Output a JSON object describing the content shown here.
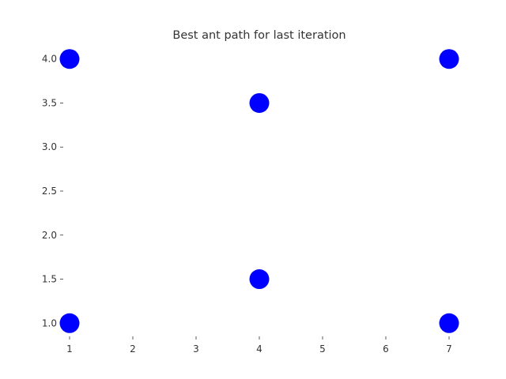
{
  "chart_data": {
    "type": "scatter",
    "title": "Best ant path for last iteration",
    "xlabel": "",
    "ylabel": "",
    "xlim": [
      0.9,
      7.1
    ],
    "ylim": [
      0.85,
      4.15
    ],
    "xticks": [
      1,
      2,
      3,
      4,
      5,
      6,
      7
    ],
    "xtick_labels": [
      "1",
      "2",
      "3",
      "4",
      "5",
      "6",
      "7"
    ],
    "yticks": [
      1.0,
      1.5,
      2.0,
      2.5,
      3.0,
      3.5,
      4.0
    ],
    "ytick_labels": [
      "1.0",
      "1.5",
      "2.0",
      "2.5",
      "3.0",
      "3.5",
      "4.0"
    ],
    "grid": false,
    "legend": "none",
    "points": [
      {
        "x": 1,
        "y": 4.0
      },
      {
        "x": 7,
        "y": 4.0
      },
      {
        "x": 4,
        "y": 3.5
      },
      {
        "x": 4,
        "y": 1.5
      },
      {
        "x": 1,
        "y": 1.0
      },
      {
        "x": 7,
        "y": 1.0
      }
    ],
    "marker_color": "#0000ff"
  }
}
